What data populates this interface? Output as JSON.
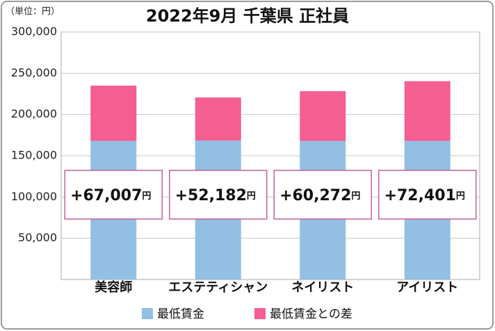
{
  "chart_data": {
    "type": "stacked_bar",
    "title": "2022年9月 千葉県 正社員",
    "unit_label": "（単位：円）",
    "categories": [
      "美容師",
      "エステティシャン",
      "ネイリスト",
      "アイリスト"
    ],
    "series": [
      {
        "name": "最低賃金",
        "color": "#92bfe3",
        "values": [
          168000,
          168500,
          168000,
          168000
        ]
      },
      {
        "name": "最低賃金との差",
        "color": "#f55e90",
        "values": [
          67007,
          52182,
          60272,
          72401
        ],
        "value_labels": [
          "+67,007",
          "+52,182",
          "+60,272",
          "+72,401"
        ],
        "value_label_unit": "円"
      }
    ],
    "ylim": [
      0,
      300000
    ],
    "yticks": [
      {
        "value": 50000,
        "label": "50,000"
      },
      {
        "value": 100000,
        "label": "100,000"
      },
      {
        "value": 150000,
        "label": "150,000"
      },
      {
        "value": 200000,
        "label": "200,000"
      },
      {
        "value": 250000,
        "label": "250,000"
      },
      {
        "value": 300000,
        "label": "300,000"
      }
    ],
    "grid": true,
    "legend": "bottom"
  }
}
